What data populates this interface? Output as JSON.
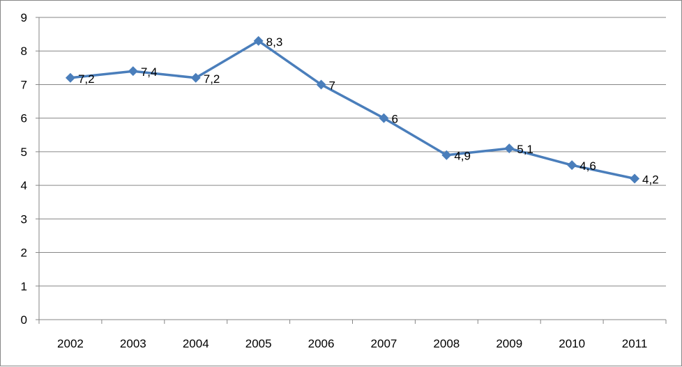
{
  "chart_data": {
    "type": "line",
    "title": "",
    "xlabel": "",
    "ylabel": "",
    "categories": [
      "2002",
      "2003",
      "2004",
      "2005",
      "2006",
      "2007",
      "2008",
      "2009",
      "2010",
      "2011"
    ],
    "series": [
      {
        "values": [
          7.2,
          7.4,
          7.2,
          8.3,
          7,
          6,
          4.9,
          5.1,
          4.6,
          4.2
        ],
        "data_labels": [
          "7,2",
          "7,4",
          "7,2",
          "8,3",
          "7",
          "6",
          "4,9",
          "5,1",
          "4,6",
          "4,2"
        ],
        "color": "#4A7EBB",
        "marker": "diamond"
      }
    ],
    "ylim": [
      0,
      9
    ],
    "y_ticks": [
      "0",
      "1",
      "2",
      "3",
      "4",
      "5",
      "6",
      "7",
      "8",
      "9"
    ],
    "grid": "horizontal",
    "gridline_color": "#868686",
    "legend": "none"
  }
}
